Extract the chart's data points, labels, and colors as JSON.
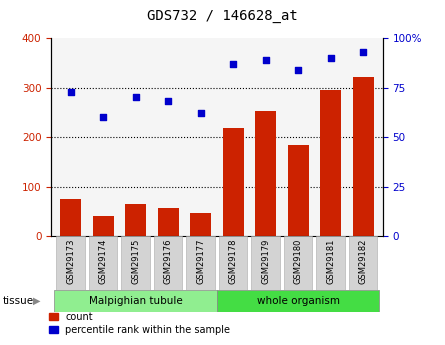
{
  "title": "GDS732 / 146628_at",
  "samples": [
    "GSM29173",
    "GSM29174",
    "GSM29175",
    "GSM29176",
    "GSM29177",
    "GSM29178",
    "GSM29179",
    "GSM29180",
    "GSM29181",
    "GSM29182"
  ],
  "counts": [
    75,
    40,
    65,
    58,
    48,
    218,
    252,
    185,
    295,
    322
  ],
  "percentiles": [
    73,
    60,
    70,
    68,
    62,
    87,
    89,
    84,
    90,
    93
  ],
  "bar_color": "#cc2200",
  "dot_color": "#0000cc",
  "ylim_left": [
    0,
    400
  ],
  "ylim_right": [
    0,
    100
  ],
  "yticks_left": [
    0,
    100,
    200,
    300,
    400
  ],
  "yticks_right": [
    0,
    25,
    50,
    75,
    100
  ],
  "yticklabels_right": [
    "0",
    "25",
    "50",
    "75",
    "100%"
  ],
  "grid_values": [
    100,
    200,
    300
  ],
  "group_label1": "Malpighian tubule",
  "group_label2": "whole organism",
  "group1_color": "#90ee90",
  "group2_color": "#44dd44",
  "tissue_label": "tissue",
  "legend_count": "count",
  "legend_pct": "percentile rank within the sample",
  "bg_plot": "#f5f5f5",
  "sample_box_color": "#d3d3d3",
  "n_group1": 5,
  "n_group2": 5
}
